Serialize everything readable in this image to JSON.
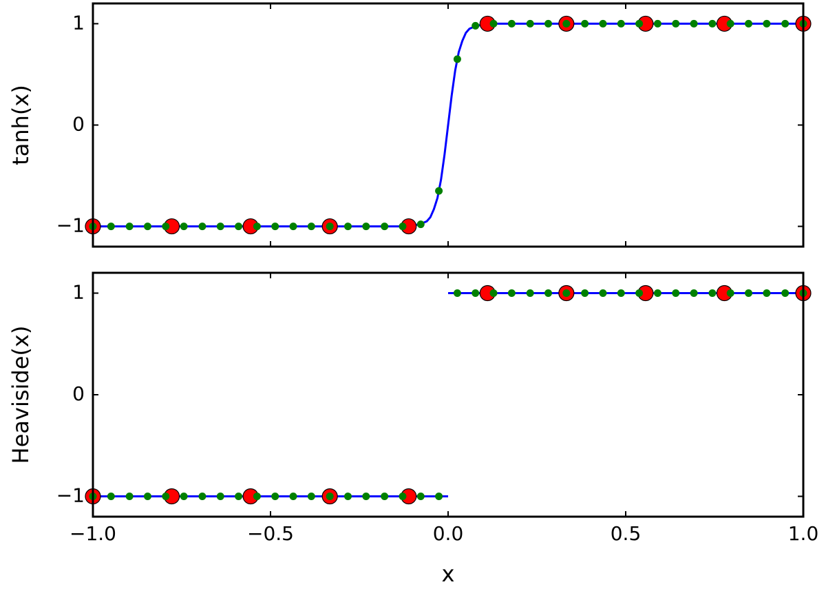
{
  "chart_data": [
    {
      "type": "line",
      "ylabel": "tanh(x)",
      "xlim": [
        -1,
        1
      ],
      "ylim": [
        -1.2,
        1.2
      ],
      "yticks": [
        {
          "value": -1,
          "label": "−1"
        },
        0,
        1
      ],
      "series": [
        {
          "style": "line",
          "color": "#0000ff",
          "x": [
            -1,
            -0.5,
            -0.2,
            -0.15,
            -0.12,
            -0.1,
            -0.08,
            -0.06,
            -0.05,
            -0.04,
            -0.03,
            -0.02,
            -0.01,
            0,
            0.01,
            0.02,
            0.03,
            0.04,
            0.05,
            0.06,
            0.08,
            0.1,
            0.12,
            0.15,
            0.2,
            0.5,
            1
          ],
          "values": [
            -1,
            -1,
            -1,
            -1,
            -1,
            -0.99,
            -0.98,
            -0.95,
            -0.91,
            -0.83,
            -0.72,
            -0.54,
            -0.29,
            0,
            0.29,
            0.54,
            0.72,
            0.83,
            0.91,
            0.95,
            0.98,
            0.99,
            1,
            1,
            1,
            1,
            1
          ]
        },
        {
          "style": "large-dots",
          "color": "#ff0000",
          "x": [
            -1,
            -0.778,
            -0.556,
            -0.333,
            -0.111,
            0.111,
            0.333,
            0.556,
            0.778,
            1
          ],
          "values": [
            -1,
            -1,
            -1,
            -1,
            -1,
            1,
            1,
            1,
            1,
            1
          ]
        },
        {
          "style": "small-dots",
          "color": "#008000",
          "x": [
            -1,
            -0.949,
            -0.897,
            -0.846,
            -0.795,
            -0.744,
            -0.692,
            -0.641,
            -0.59,
            -0.538,
            -0.487,
            -0.436,
            -0.385,
            -0.333,
            -0.282,
            -0.231,
            -0.179,
            -0.128,
            -0.077,
            -0.026,
            0.026,
            0.077,
            0.128,
            0.179,
            0.231,
            0.282,
            0.333,
            0.385,
            0.436,
            0.487,
            0.538,
            0.59,
            0.641,
            0.692,
            0.744,
            0.795,
            0.846,
            0.897,
            0.949,
            1
          ],
          "values": [
            -1,
            -1,
            -1,
            -1,
            -1,
            -1,
            -1,
            -1,
            -1,
            -1,
            -1,
            -1,
            -1,
            -1,
            -1,
            -1,
            -1,
            -1,
            -0.98,
            -0.65,
            0.65,
            0.98,
            1,
            1,
            1,
            1,
            1,
            1,
            1,
            1,
            1,
            1,
            1,
            1,
            1,
            1,
            1,
            1,
            1,
            1
          ]
        }
      ]
    },
    {
      "type": "line",
      "ylabel": "Heaviside(x)",
      "xlabel": "x",
      "xlim": [
        -1,
        1
      ],
      "ylim": [
        -1.2,
        1.2
      ],
      "xticks": [
        {
          "value": -1,
          "label": "−1.0"
        },
        {
          "value": -0.5,
          "label": "−0.5"
        },
        {
          "value": 0,
          "label": "0.0"
        },
        {
          "value": 0.5,
          "label": "0.5"
        },
        {
          "value": 1,
          "label": "1.0"
        }
      ],
      "yticks": [
        {
          "value": -1,
          "label": "−1"
        },
        0,
        1
      ],
      "series": [
        {
          "style": "line",
          "color": "#0000ff",
          "x": [
            -1,
            0,
            0,
            0,
            1
          ],
          "values": [
            -1,
            -1,
            null,
            1,
            1
          ]
        },
        {
          "style": "large-dots",
          "color": "#ff0000",
          "x": [
            -1,
            -0.778,
            -0.556,
            -0.333,
            -0.111,
            0.111,
            0.333,
            0.556,
            0.778,
            1
          ],
          "values": [
            -1,
            -1,
            -1,
            -1,
            -1,
            1,
            1,
            1,
            1,
            1
          ]
        },
        {
          "style": "small-dots",
          "color": "#008000",
          "x": [
            -1,
            -0.949,
            -0.897,
            -0.846,
            -0.795,
            -0.744,
            -0.692,
            -0.641,
            -0.59,
            -0.538,
            -0.487,
            -0.436,
            -0.385,
            -0.333,
            -0.282,
            -0.231,
            -0.179,
            -0.128,
            -0.077,
            -0.026,
            0.026,
            0.077,
            0.128,
            0.179,
            0.231,
            0.282,
            0.333,
            0.385,
            0.436,
            0.487,
            0.538,
            0.59,
            0.641,
            0.692,
            0.744,
            0.795,
            0.846,
            0.897,
            0.949,
            1
          ],
          "values": [
            -1,
            -1,
            -1,
            -1,
            -1,
            -1,
            -1,
            -1,
            -1,
            -1,
            -1,
            -1,
            -1,
            -1,
            -1,
            -1,
            -1,
            -1,
            -1,
            -1,
            1,
            1,
            1,
            1,
            1,
            1,
            1,
            1,
            1,
            1,
            1,
            1,
            1,
            1,
            1,
            1,
            1,
            1,
            1,
            1
          ]
        }
      ]
    }
  ]
}
